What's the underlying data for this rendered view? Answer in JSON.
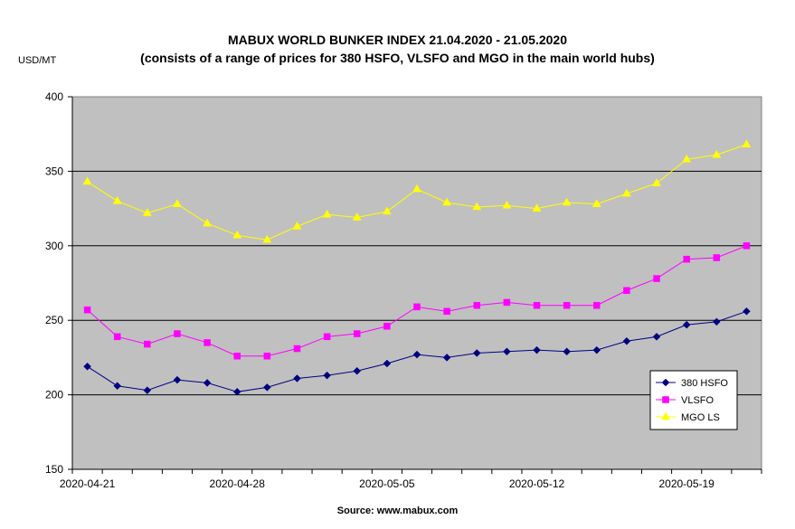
{
  "chart_data": {
    "type": "line",
    "title_line1": "MABUX WORLD BUNKER INDEX 21.04.2020 - 21.05.2020",
    "title_line2": "(consists of a range of prices for 380 HSFO, VLSFO and MGO in the main world hubs)",
    "ylabel": "USD/MT",
    "ylim": [
      150,
      400
    ],
    "yticks": [
      150,
      200,
      250,
      300,
      350,
      400
    ],
    "x": [
      "2020-04-21",
      "2020-04-22",
      "2020-04-23",
      "2020-04-24",
      "2020-04-27",
      "2020-04-28",
      "2020-04-29",
      "2020-04-30",
      "2020-05-01",
      "2020-05-04",
      "2020-05-05",
      "2020-05-06",
      "2020-05-07",
      "2020-05-08",
      "2020-05-11",
      "2020-05-12",
      "2020-05-13",
      "2020-05-14",
      "2020-05-15",
      "2020-05-18",
      "2020-05-19",
      "2020-05-20",
      "2020-05-21"
    ],
    "xtick_labels": [
      "2020-04-21",
      "2020-04-28",
      "2020-05-05",
      "2020-05-12",
      "2020-05-19"
    ],
    "xtick_label_index": [
      0,
      5,
      10,
      15,
      20
    ],
    "grid": "horizontal",
    "legend_position": "bottom-right",
    "series": [
      {
        "name": "380 HSFO",
        "color": "#000080",
        "marker": "diamond",
        "values": [
          219,
          206,
          203,
          210,
          208,
          202,
          205,
          211,
          213,
          216,
          221,
          227,
          225,
          228,
          229,
          230,
          229,
          230,
          236,
          239,
          247,
          249,
          256
        ]
      },
      {
        "name": "VLSFO",
        "color": "#ff00ff",
        "marker": "square",
        "values": [
          257,
          239,
          234,
          241,
          235,
          226,
          226,
          231,
          239,
          241,
          246,
          259,
          256,
          260,
          262,
          260,
          260,
          260,
          270,
          278,
          291,
          292,
          300
        ]
      },
      {
        "name": "MGO LS",
        "color": "#ffff00",
        "marker": "triangle",
        "values": [
          343,
          330,
          322,
          328,
          315,
          307,
          304,
          313,
          321,
          319,
          323,
          338,
          329,
          326,
          327,
          325,
          329,
          328,
          335,
          342,
          358,
          361,
          368
        ]
      }
    ]
  },
  "source": "Source: www.mabux.com"
}
